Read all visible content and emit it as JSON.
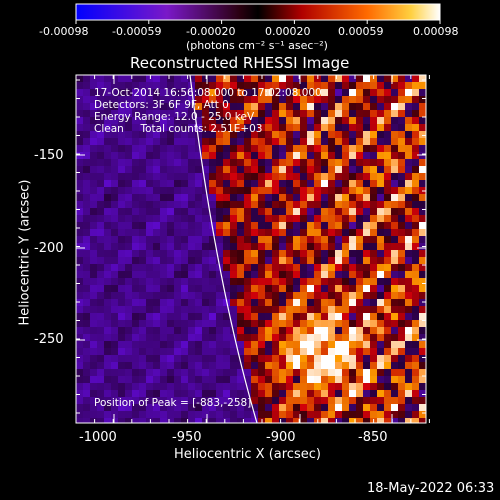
{
  "colorbar": {
    "ticks": [
      "-0.00098",
      "-0.00059",
      "-0.00020",
      "0.00020",
      "0.00059",
      "0.00098"
    ],
    "unit_label": "(photons cm⁻² s⁻¹ asec⁻²)"
  },
  "title": "Reconstructed RHESSI Image",
  "info": {
    "line1": "17-Oct-2014 16:56:08.000 to 17:02:08.000",
    "line2": "Detectors: 3F 6F 9F, Att 0",
    "line3": "Energy Range: 12.0 - 25.0 keV",
    "line4": "Clean     Total counts: 2.51E+03"
  },
  "peak_label": "Position of Peak = [-883,-258]",
  "axes": {
    "xlabel": "Heliocentric X (arcsec)",
    "ylabel": "Heliocentric Y (arcsec)",
    "xticks": [
      "-1000",
      "-950",
      "-900",
      "-850"
    ],
    "yticks": [
      "-150",
      "-200",
      "-250"
    ]
  },
  "footer_date": "18-May-2022 06:33",
  "colors": {
    "background": "#000000",
    "axis": "#ffffff",
    "limb_line": "#ffffff"
  }
}
